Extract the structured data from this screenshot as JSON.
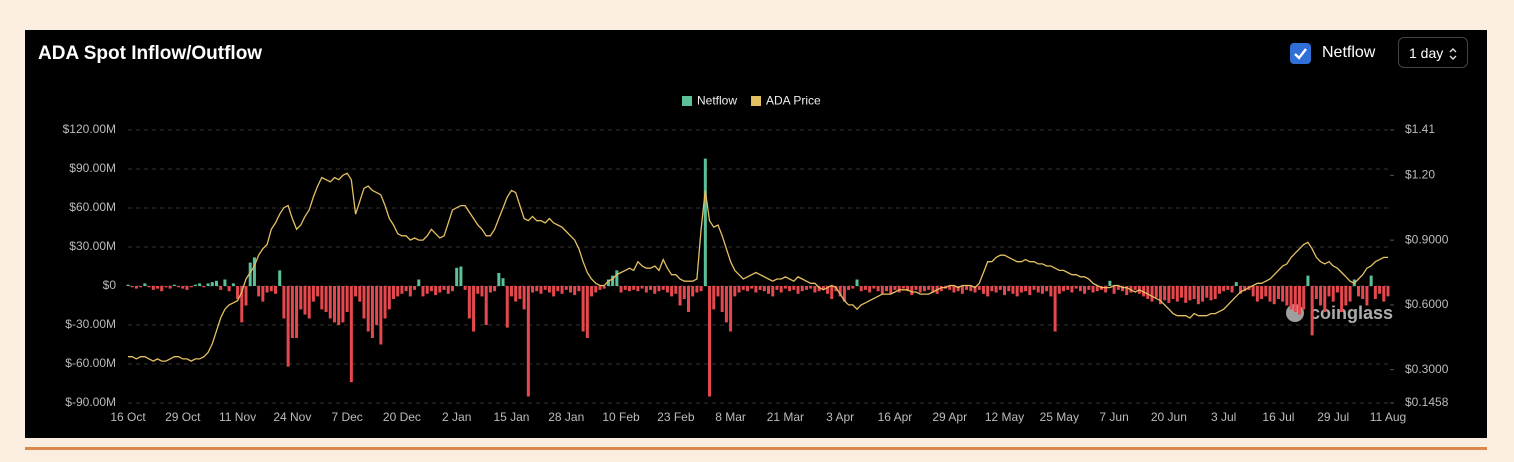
{
  "controls": {
    "toggle_label": "Netflow",
    "interval": "1 day"
  },
  "watermark": "coinglass",
  "chart_data": {
    "type": "bar-line",
    "title": "ADA Spot Inflow/Outflow",
    "categories": [
      "16 Oct",
      null,
      null,
      null,
      null,
      null,
      null,
      null,
      null,
      null,
      null,
      null,
      null,
      "29 Oct",
      null,
      null,
      null,
      null,
      null,
      null,
      null,
      null,
      null,
      null,
      null,
      null,
      "11 Nov",
      null,
      null,
      null,
      null,
      null,
      null,
      null,
      null,
      null,
      null,
      null,
      null,
      "24 Nov",
      null,
      null,
      null,
      null,
      null,
      null,
      null,
      null,
      null,
      null,
      null,
      null,
      "7 Dec",
      null,
      null,
      null,
      null,
      null,
      null,
      null,
      null,
      null,
      null,
      null,
      null,
      "20 Dec",
      null,
      null,
      null,
      null,
      null,
      null,
      null,
      null,
      null,
      null,
      null,
      null,
      "2 Jan",
      null,
      null,
      null,
      null,
      null,
      null,
      null,
      null,
      null,
      null,
      null,
      null,
      "15 Jan",
      null,
      null,
      null,
      null,
      null,
      null,
      null,
      null,
      null,
      null,
      null,
      null,
      "28 Jan",
      null,
      null,
      null,
      null,
      null,
      null,
      null,
      null,
      null,
      null,
      null,
      null,
      "10 Feb",
      null,
      null,
      null,
      null,
      null,
      null,
      null,
      null,
      null,
      null,
      null,
      null,
      "23 Feb",
      null,
      null,
      null,
      null,
      null,
      null,
      null,
      null,
      null,
      null,
      null,
      null,
      "8 Mar",
      null,
      null,
      null,
      null,
      null,
      null,
      null,
      null,
      null,
      null,
      null,
      null,
      "21 Mar",
      null,
      null,
      null,
      null,
      null,
      null,
      null,
      null,
      null,
      null,
      null,
      null,
      "3 Apr",
      null,
      null,
      null,
      null,
      null,
      null,
      null,
      null,
      null,
      null,
      null,
      null,
      "16 Apr",
      null,
      null,
      null,
      null,
      null,
      null,
      null,
      null,
      null,
      null,
      null,
      null,
      "29 Apr",
      null,
      null,
      null,
      null,
      null,
      null,
      null,
      null,
      null,
      null,
      null,
      null,
      "12 May",
      null,
      null,
      null,
      null,
      null,
      null,
      null,
      null,
      null,
      null,
      null,
      null,
      "25 May",
      null,
      null,
      null,
      null,
      null,
      null,
      null,
      null,
      null,
      null,
      null,
      null,
      "7 Jun",
      null,
      null,
      null,
      null,
      null,
      null,
      null,
      null,
      null,
      null,
      null,
      null,
      "20 Jun",
      null,
      null,
      null,
      null,
      null,
      null,
      null,
      null,
      null,
      null,
      null,
      null,
      "3 Jul",
      null,
      null,
      null,
      null,
      null,
      null,
      null,
      null,
      null,
      null,
      null,
      null,
      "16 Jul",
      null,
      null,
      null,
      null,
      null,
      null,
      null,
      null,
      null,
      null,
      null,
      null,
      "29 Jul",
      null,
      null,
      null,
      null,
      null,
      null,
      null,
      null,
      null,
      null,
      null,
      null,
      "11 Aug"
    ],
    "series": [
      {
        "name": "Netflow",
        "type": "bar",
        "color": "#5cc198",
        "negative_color": "#e5484d",
        "axis": "y",
        "values": [
          1,
          -1,
          -2,
          -1,
          2,
          -1,
          -3,
          -2,
          -4,
          -1,
          -2,
          1,
          -1,
          -2,
          -3,
          -1,
          1,
          2,
          -1,
          2,
          3,
          4,
          -3,
          5,
          -4,
          2,
          -10,
          -28,
          -15,
          18,
          22,
          -8,
          -12,
          -5,
          -4,
          -6,
          12,
          -25,
          -62,
          -40,
          -40,
          -18,
          -22,
          -25,
          -12,
          -8,
          -18,
          -20,
          -25,
          -28,
          -30,
          -28,
          -20,
          -74,
          -8,
          -12,
          -25,
          -35,
          -40,
          -30,
          -45,
          -25,
          -18,
          -10,
          -8,
          -6,
          -4,
          -8,
          -3,
          5,
          -8,
          -6,
          -4,
          -7,
          -5,
          -3,
          -6,
          -4,
          14,
          15,
          -3,
          -25,
          -35,
          -6,
          -8,
          -30,
          -5,
          -4,
          10,
          6,
          -32,
          -8,
          -12,
          -10,
          -18,
          -85,
          -5,
          -4,
          -6,
          -3,
          -5,
          -8,
          -4,
          -6,
          -3,
          -5,
          -7,
          -4,
          -35,
          -40,
          -8,
          -5,
          -3,
          -2,
          5,
          8,
          12,
          -5,
          -3,
          -4,
          -3,
          -4,
          -2,
          -5,
          -3,
          -6,
          -4,
          -3,
          -5,
          -8,
          -6,
          -15,
          -10,
          -20,
          -8,
          -5,
          -4,
          98,
          -85,
          -18,
          -8,
          -20,
          -28,
          -35,
          -8,
          -5,
          -3,
          -4,
          -2,
          -5,
          -3,
          -4,
          -6,
          -8,
          -3,
          -5,
          -2,
          -4,
          -3,
          -6,
          -4,
          -3,
          -2,
          -5,
          -4,
          -3,
          -6,
          -10,
          -4,
          -8,
          -12,
          -3,
          -2,
          5,
          -4,
          -3,
          -5,
          -2,
          -4,
          -6,
          -4,
          -6,
          -3,
          -5,
          -2,
          -4,
          -7,
          -3,
          -5,
          -4,
          -3,
          -5,
          -6,
          -4,
          -2,
          -3,
          -5,
          -4,
          -6,
          -3,
          -4,
          -5,
          -3,
          -6,
          -8,
          -4,
          -5,
          -3,
          -7,
          -4,
          -6,
          -8,
          -5,
          -4,
          -7,
          -3,
          -5,
          -6,
          -4,
          -8,
          -35,
          -6,
          -4,
          -3,
          -5,
          -2,
          -4,
          -6,
          -3,
          -5,
          -4,
          -3,
          -5,
          4,
          -6,
          -3,
          -4,
          -7,
          -5,
          -3,
          -6,
          -8,
          -10,
          -12,
          -9,
          -14,
          -11,
          -13,
          -10,
          -12,
          -9,
          -13,
          -11,
          -10,
          -14,
          -12,
          -9,
          -11,
          -10,
          -6,
          -4,
          -3,
          -5,
          3,
          -6,
          -4,
          -3,
          -8,
          -12,
          -10,
          -8,
          -12,
          -14,
          -10,
          -12,
          -15,
          -18,
          -20,
          -22,
          -18,
          8,
          -38,
          -10,
          -15,
          -20,
          -8,
          -12,
          -5,
          -20,
          -15,
          -12,
          5,
          -8,
          -10,
          -15,
          8,
          -10,
          -6,
          -12,
          -8
        ]
      },
      {
        "name": "ADA Price",
        "type": "line",
        "color": "#e3c063",
        "axis": "y2",
        "values": [
          0.36,
          0.36,
          0.35,
          0.36,
          0.36,
          0.35,
          0.34,
          0.35,
          0.34,
          0.34,
          0.35,
          0.36,
          0.36,
          0.35,
          0.35,
          0.34,
          0.35,
          0.35,
          0.36,
          0.38,
          0.42,
          0.48,
          0.54,
          0.58,
          0.6,
          0.61,
          0.62,
          0.66,
          0.72,
          0.75,
          0.78,
          0.83,
          0.86,
          0.88,
          0.95,
          0.98,
          1.02,
          1.05,
          1.06,
          1.0,
          0.95,
          0.97,
          1.01,
          1.04,
          1.1,
          1.15,
          1.19,
          1.18,
          1.17,
          1.19,
          1.18,
          1.2,
          1.21,
          1.18,
          1.02,
          1.08,
          1.14,
          1.15,
          1.13,
          1.12,
          1.11,
          1.06,
          1.0,
          0.97,
          0.93,
          0.92,
          0.92,
          0.9,
          0.91,
          0.9,
          0.9,
          0.92,
          0.95,
          0.93,
          0.91,
          0.92,
          0.98,
          1.04,
          1.05,
          1.06,
          1.06,
          1.03,
          1.0,
          0.97,
          0.95,
          0.92,
          0.92,
          0.95,
          1.0,
          1.05,
          1.1,
          1.13,
          1.12,
          1.06,
          1.0,
          0.99,
          1.01,
          0.99,
          0.99,
          0.98,
          1.0,
          0.98,
          0.97,
          0.96,
          0.94,
          0.92,
          0.9,
          0.86,
          0.8,
          0.75,
          0.72,
          0.7,
          0.69,
          0.69,
          0.71,
          0.72,
          0.74,
          0.75,
          0.76,
          0.77,
          0.76,
          0.8,
          0.78,
          0.77,
          0.77,
          0.78,
          0.76,
          0.81,
          0.77,
          0.74,
          0.74,
          0.72,
          0.71,
          0.71,
          0.71,
          0.72,
          0.95,
          1.13,
          0.99,
          0.96,
          0.97,
          0.92,
          0.86,
          0.8,
          0.76,
          0.74,
          0.72,
          0.73,
          0.74,
          0.75,
          0.74,
          0.73,
          0.72,
          0.71,
          0.72,
          0.72,
          0.73,
          0.72,
          0.71,
          0.73,
          0.72,
          0.71,
          0.7,
          0.7,
          0.68,
          0.67,
          0.68,
          0.69,
          0.68,
          0.65,
          0.62,
          0.6,
          0.6,
          0.58,
          0.6,
          0.61,
          0.62,
          0.63,
          0.64,
          0.65,
          0.65,
          0.65,
          0.66,
          0.67,
          0.67,
          0.67,
          0.66,
          0.66,
          0.65,
          0.65,
          0.65,
          0.66,
          0.67,
          0.68,
          0.68,
          0.69,
          0.69,
          0.68,
          0.69,
          0.69,
          0.69,
          0.68,
          0.7,
          0.75,
          0.8,
          0.8,
          0.82,
          0.83,
          0.83,
          0.82,
          0.81,
          0.8,
          0.8,
          0.81,
          0.8,
          0.8,
          0.79,
          0.79,
          0.78,
          0.78,
          0.77,
          0.76,
          0.76,
          0.75,
          0.74,
          0.74,
          0.73,
          0.73,
          0.72,
          0.7,
          0.69,
          0.68,
          0.68,
          0.68,
          0.69,
          0.69,
          0.68,
          0.68,
          0.67,
          0.66,
          0.67,
          0.66,
          0.65,
          0.64,
          0.63,
          0.62,
          0.6,
          0.58,
          0.56,
          0.55,
          0.55,
          0.55,
          0.54,
          0.56,
          0.55,
          0.55,
          0.55,
          0.56,
          0.56,
          0.57,
          0.58,
          0.6,
          0.62,
          0.64,
          0.66,
          0.67,
          0.68,
          0.69,
          0.7,
          0.7,
          0.71,
          0.72,
          0.74,
          0.76,
          0.78,
          0.79,
          0.82,
          0.84,
          0.86,
          0.88,
          0.89,
          0.86,
          0.82,
          0.8,
          0.79,
          0.8,
          0.78,
          0.77,
          0.75,
          0.73,
          0.71,
          0.7,
          0.72,
          0.74,
          0.77,
          0.78,
          0.8,
          0.81,
          0.82,
          0.82
        ]
      }
    ],
    "ylim": [
      -90,
      120
    ],
    "yticks": [
      {
        "value": -90,
        "label": "$-90.00M"
      },
      {
        "value": -60,
        "label": "$-60.00M"
      },
      {
        "value": -30,
        "label": "$-30.00M"
      },
      {
        "value": 0,
        "label": "$0"
      },
      {
        "value": 30,
        "label": "$30.00M"
      },
      {
        "value": 60,
        "label": "$60.00M"
      },
      {
        "value": 90,
        "label": "$90.00M"
      },
      {
        "value": 120,
        "label": "$120.00M"
      }
    ],
    "y2lim": [
      0.1458,
      1.41
    ],
    "y2ticks": [
      {
        "value": 0.1458,
        "label": "$0.1458"
      },
      {
        "value": 0.3,
        "label": "$0.3000"
      },
      {
        "value": 0.6,
        "label": "$0.6000"
      },
      {
        "value": 0.9,
        "label": "$0.9000"
      },
      {
        "value": 1.2,
        "label": "$1.20"
      },
      {
        "value": 1.41,
        "label": "$1.41"
      }
    ],
    "grid": true,
    "legend": "top"
  }
}
